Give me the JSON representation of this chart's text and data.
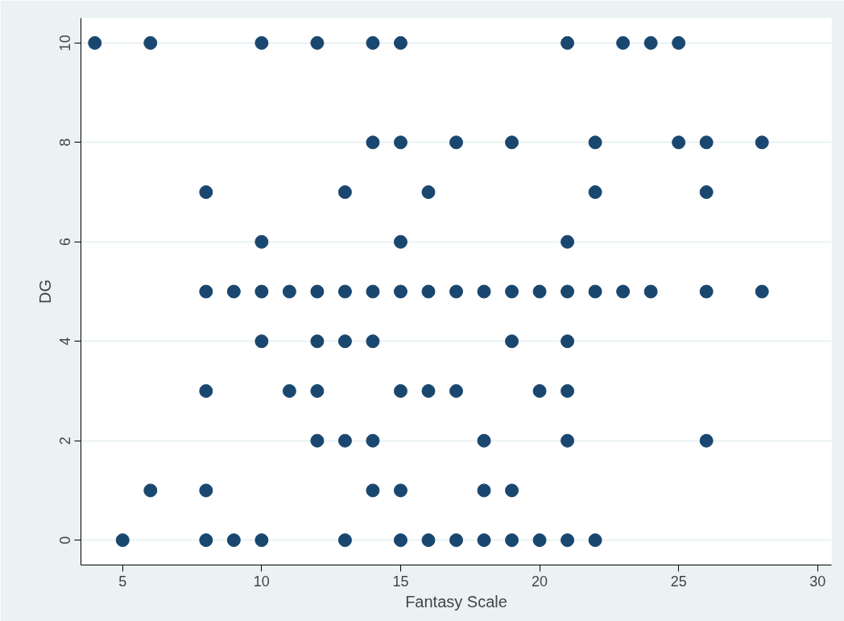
{
  "chart_data": {
    "type": "scatter",
    "xlabel": "Fantasy Scale",
    "ylabel": "DG",
    "x": [
      4,
      6,
      10,
      12,
      14,
      15,
      21,
      23,
      24,
      25,
      14,
      15,
      17,
      19,
      22,
      25,
      26,
      28,
      8,
      13,
      16,
      22,
      26,
      10,
      15,
      21,
      8,
      9,
      10,
      11,
      12,
      13,
      14,
      15,
      16,
      17,
      18,
      19,
      20,
      21,
      22,
      23,
      24,
      26,
      28,
      10,
      12,
      13,
      14,
      19,
      21,
      8,
      11,
      12,
      15,
      16,
      17,
      20,
      21,
      12,
      13,
      14,
      18,
      21,
      26,
      6,
      8,
      14,
      15,
      18,
      19,
      5,
      8,
      9,
      10,
      13,
      15,
      16,
      17,
      18,
      19,
      20,
      21,
      22
    ],
    "values": [
      10,
      10,
      10,
      10,
      10,
      10,
      10,
      10,
      10,
      10,
      8,
      8,
      8,
      8,
      8,
      8,
      8,
      8,
      7,
      7,
      7,
      7,
      7,
      6,
      6,
      6,
      5,
      5,
      5,
      5,
      5,
      5,
      5,
      5,
      5,
      5,
      5,
      5,
      5,
      5,
      5,
      5,
      5,
      5,
      5,
      4,
      4,
      4,
      4,
      4,
      4,
      3,
      3,
      3,
      3,
      3,
      3,
      3,
      3,
      2,
      2,
      2,
      2,
      2,
      2,
      1,
      1,
      1,
      1,
      1,
      1,
      0,
      0,
      0,
      0,
      0,
      0,
      0,
      0,
      0,
      0,
      0,
      0,
      0
    ],
    "color": "#1a476f",
    "marker": "circle",
    "xlim": [
      3.5,
      30.5
    ],
    "ylim": [
      -0.5,
      10.5
    ],
    "xticks": [
      5,
      10,
      15,
      20,
      25,
      30
    ],
    "yticks": [
      0,
      2,
      4,
      6,
      8,
      10
    ],
    "grid": "y"
  }
}
